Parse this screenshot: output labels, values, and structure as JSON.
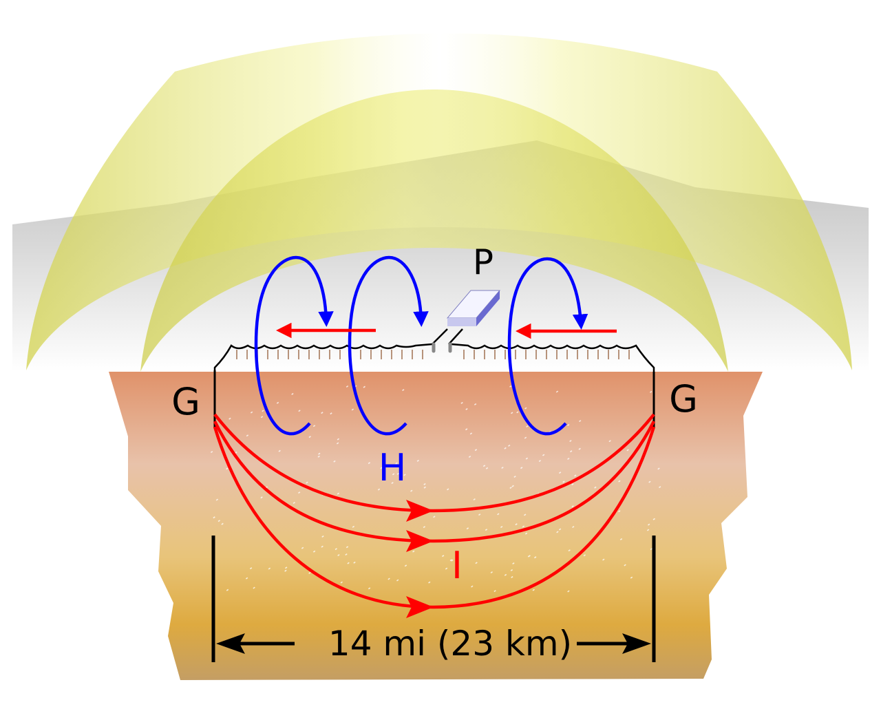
{
  "labels": {
    "power_supply": "P",
    "ground_left": "G",
    "ground_right": "G",
    "magnetic_field": "H",
    "current": "I",
    "distance": "14 mi (23 km)"
  },
  "colors": {
    "current": "#ff0000",
    "magnetic_field": "#0000ff",
    "text": "#000000",
    "ionosphere": "#d4d45a",
    "sky": "#c8c8c8",
    "ground_top": "#e0946a",
    "ground_bottom": "#c8a060"
  }
}
